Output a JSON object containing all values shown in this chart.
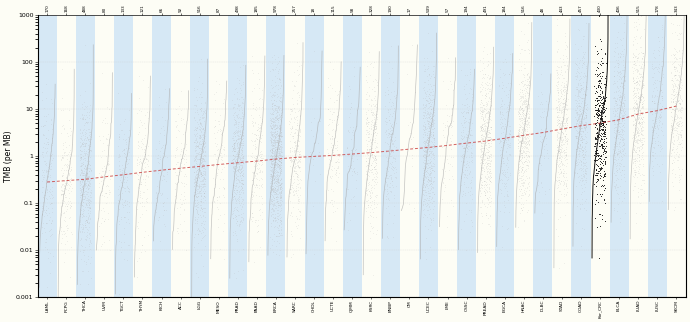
{
  "categories_bottom": [
    "LAML",
    "PCPG",
    "THCA",
    "UVM",
    "TGCT",
    "THYM",
    "KICH",
    "ACC",
    "LGG",
    "MESO",
    "PRAD",
    "PAAD",
    "BRCA",
    "SARC",
    "CHDL",
    "UCTE",
    "CJMM",
    "KSRC",
    "BNBP",
    "CM",
    "UCEC",
    "LME",
    "CSSC",
    "PREAD",
    "EGCA",
    "HNAC",
    "DLBC",
    "STAD",
    "COAD",
    "Kor_CRC",
    "BLCA",
    "LUAD",
    "LUSC",
    "SKCM"
  ],
  "ylabel": "TMB (per MB)",
  "ylim_log": [
    0.001,
    1000
  ],
  "yticks": [
    0.001,
    0.01,
    0.1,
    1,
    10,
    100,
    1000
  ],
  "ytick_labels": [
    "0.001",
    "0.01",
    "0.1",
    "1",
    "10",
    "100",
    "1000"
  ],
  "curve_color": "#aaaaaa",
  "dot_color": "#bbbbbb",
  "dot_color_highlight": "#111111",
  "median_color": "#cc4444",
  "highlight_index": 29,
  "n_datasets": 34,
  "background_blue": "#d6e8f5",
  "background_cream": "#fdfdf5",
  "grid_color": "#cccccc",
  "median_values": [
    0.28,
    0.3,
    0.32,
    0.36,
    0.4,
    0.45,
    0.5,
    0.55,
    0.6,
    0.66,
    0.72,
    0.78,
    0.86,
    0.93,
    0.98,
    1.03,
    1.1,
    1.18,
    1.28,
    1.4,
    1.52,
    1.68,
    1.88,
    2.08,
    2.38,
    2.75,
    3.15,
    3.75,
    4.4,
    5.0,
    5.9,
    7.8,
    9.2,
    11.5
  ],
  "sample_ns": [
    170,
    168,
    488,
    80,
    133,
    121,
    66,
    92,
    516,
    87,
    498,
    185,
    978,
    257,
    18,
    115,
    58,
    328,
    190,
    17,
    539,
    57,
    194,
    491,
    184,
    516,
    48,
    443,
    457,
    430,
    406,
    515,
    178,
    343
  ]
}
